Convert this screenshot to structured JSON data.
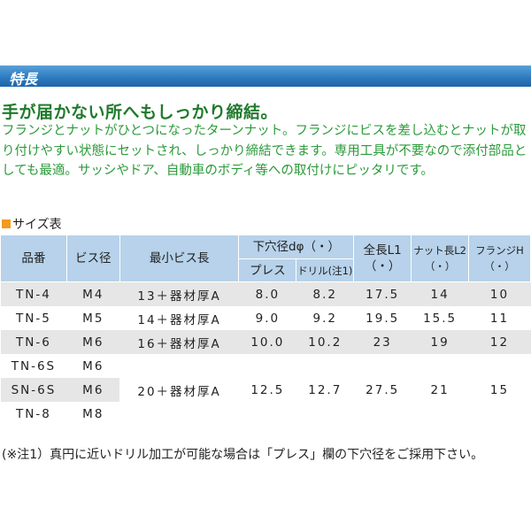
{
  "section": {
    "title": "特長",
    "headline": "手が届かない所へもしっかり締結。",
    "description": "フランジとナットがひとつになったターンナット。フランジにビスを差し込むとナットが取り付けやすい状態にセットされ、しっかり締結できます。専用工具が不要なので添付部品としても最適。サッシやドア、自動車のボディ等への取付けにピッタリです。"
  },
  "table": {
    "title": "サイズ表",
    "header": {
      "code": "品番",
      "screw": "ビス径",
      "min_length": "最小ビス長",
      "hole": "下穴径dφ（・）",
      "press": "プレス",
      "drill": "ドリル(注1)",
      "l1": "全長L1",
      "l1_unit": "（・）",
      "l2": "ナット長L2",
      "l2_unit": "（・）",
      "h": "フランジH",
      "h_unit": "（・）"
    },
    "rows": [
      [
        "TN-4",
        "M4",
        "13＋器材厚A",
        "8.0",
        "8.2",
        "17.5",
        "14",
        "10"
      ],
      [
        "TN-5",
        "M5",
        "14＋器材厚A",
        "9.0",
        "9.2",
        "19.5",
        "15.5",
        "11"
      ],
      [
        "TN-6",
        "M6",
        "16＋器材厚A",
        "10.0",
        "10.2",
        "23",
        "19",
        "12"
      ],
      [
        "TN-6S",
        "M6",
        "20＋器材厚A",
        "12.5",
        "12.7",
        "27.5",
        "21",
        "15"
      ],
      [
        "SN-6S",
        "M6"
      ],
      [
        "TN-8",
        "M8"
      ]
    ],
    "note": "(※注1）真円に近いドリル加工が可能な場合は「プレス」欄の下穴径をご採用下さい。"
  }
}
